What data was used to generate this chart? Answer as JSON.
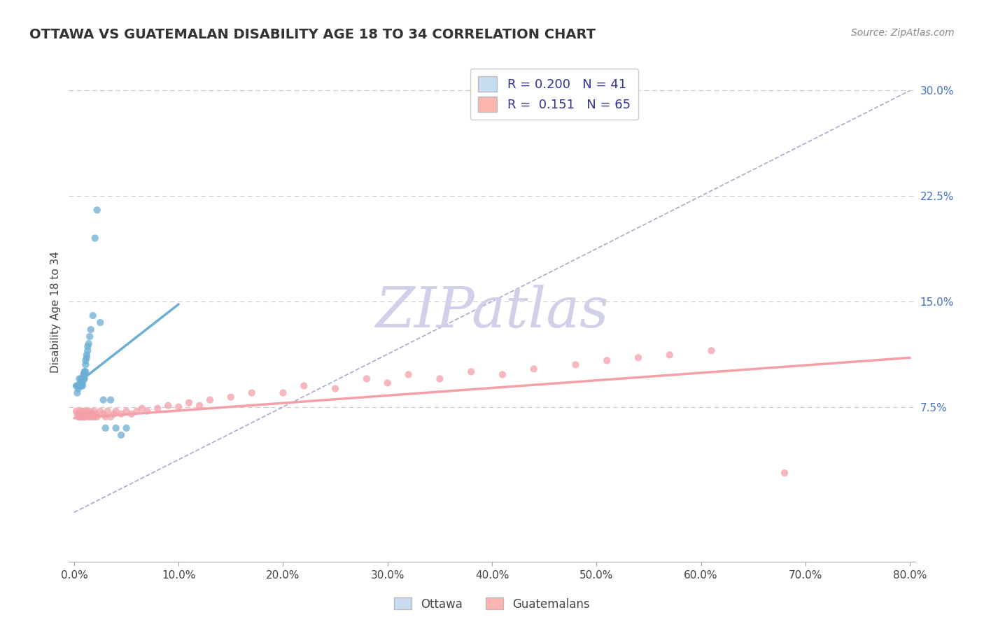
{
  "title": "OTTAWA VS GUATEMALAN DISABILITY AGE 18 TO 34 CORRELATION CHART",
  "source_text": "Source: ZipAtlas.com",
  "ylabel": "Disability Age 18 to 34",
  "legend_label1": "Ottawa",
  "legend_label2": "Guatemalans",
  "r1": 0.2,
  "n1": 41,
  "r2": 0.151,
  "n2": 65,
  "xlim": [
    -0.005,
    0.805
  ],
  "ylim": [
    -0.035,
    0.32
  ],
  "xticks": [
    0.0,
    0.1,
    0.2,
    0.3,
    0.4,
    0.5,
    0.6,
    0.7,
    0.8
  ],
  "yticks_right": [
    0.075,
    0.15,
    0.225,
    0.3
  ],
  "ytick_labels_right": [
    "7.5%",
    "15.0%",
    "22.5%",
    "30.0%"
  ],
  "xtick_labels": [
    "0.0%",
    "10.0%",
    "20.0%",
    "30.0%",
    "40.0%",
    "50.0%",
    "60.0%",
    "70.0%",
    "80.0%"
  ],
  "color_ottawa": "#6baed6",
  "color_guatemalan": "#f4a0a8",
  "color_ottawa_fill": "#c6dbef",
  "color_guatemalan_fill": "#fbb4ae",
  "background_color": "#ffffff",
  "grid_color": "#cccccc",
  "watermark_text": "ZIPatlas",
  "watermark_color": "#d0d0e8",
  "ottawa_x": [
    0.002,
    0.003,
    0.004,
    0.004,
    0.005,
    0.005,
    0.006,
    0.006,
    0.007,
    0.007,
    0.007,
    0.008,
    0.008,
    0.008,
    0.009,
    0.009,
    0.009,
    0.01,
    0.01,
    0.01,
    0.01,
    0.011,
    0.011,
    0.011,
    0.012,
    0.012,
    0.013,
    0.013,
    0.014,
    0.015,
    0.016,
    0.018,
    0.02,
    0.022,
    0.025,
    0.028,
    0.03,
    0.035,
    0.04,
    0.045,
    0.05
  ],
  "ottawa_y": [
    0.09,
    0.085,
    0.09,
    0.088,
    0.09,
    0.095,
    0.09,
    0.092,
    0.09,
    0.092,
    0.095,
    0.09,
    0.095,
    0.092,
    0.095,
    0.098,
    0.095,
    0.098,
    0.1,
    0.095,
    0.1,
    0.1,
    0.105,
    0.108,
    0.11,
    0.112,
    0.115,
    0.118,
    0.12,
    0.125,
    0.13,
    0.14,
    0.195,
    0.215,
    0.135,
    0.08,
    0.06,
    0.08,
    0.06,
    0.055,
    0.06
  ],
  "guatemalan_x": [
    0.002,
    0.003,
    0.004,
    0.005,
    0.005,
    0.006,
    0.006,
    0.007,
    0.007,
    0.008,
    0.008,
    0.009,
    0.009,
    0.01,
    0.01,
    0.011,
    0.011,
    0.012,
    0.013,
    0.014,
    0.015,
    0.016,
    0.017,
    0.018,
    0.019,
    0.02,
    0.021,
    0.022,
    0.025,
    0.028,
    0.03,
    0.032,
    0.035,
    0.038,
    0.04,
    0.045,
    0.05,
    0.055,
    0.06,
    0.065,
    0.07,
    0.08,
    0.09,
    0.1,
    0.11,
    0.12,
    0.13,
    0.15,
    0.17,
    0.2,
    0.22,
    0.25,
    0.28,
    0.3,
    0.32,
    0.35,
    0.38,
    0.41,
    0.44,
    0.48,
    0.51,
    0.54,
    0.57,
    0.61,
    0.68
  ],
  "guatemalan_y": [
    0.072,
    0.07,
    0.068,
    0.068,
    0.07,
    0.068,
    0.072,
    0.07,
    0.068,
    0.072,
    0.068,
    0.07,
    0.068,
    0.072,
    0.068,
    0.07,
    0.068,
    0.072,
    0.07,
    0.068,
    0.072,
    0.068,
    0.07,
    0.068,
    0.072,
    0.068,
    0.07,
    0.068,
    0.072,
    0.07,
    0.068,
    0.072,
    0.068,
    0.07,
    0.072,
    0.07,
    0.072,
    0.07,
    0.072,
    0.074,
    0.072,
    0.074,
    0.076,
    0.075,
    0.078,
    0.076,
    0.08,
    0.082,
    0.085,
    0.085,
    0.09,
    0.088,
    0.095,
    0.092,
    0.098,
    0.095,
    0.1,
    0.098,
    0.102,
    0.105,
    0.108,
    0.11,
    0.112,
    0.115,
    0.028
  ],
  "ottawa_trend_x": [
    0.0,
    0.1
  ],
  "ottawa_trend_y": [
    0.09,
    0.148
  ],
  "guatemalan_trend_x": [
    0.0,
    0.8
  ],
  "guatemalan_trend_y": [
    0.067,
    0.11
  ],
  "ref_line_x": [
    0.0,
    0.8
  ],
  "ref_line_y": [
    0.0,
    0.3
  ]
}
